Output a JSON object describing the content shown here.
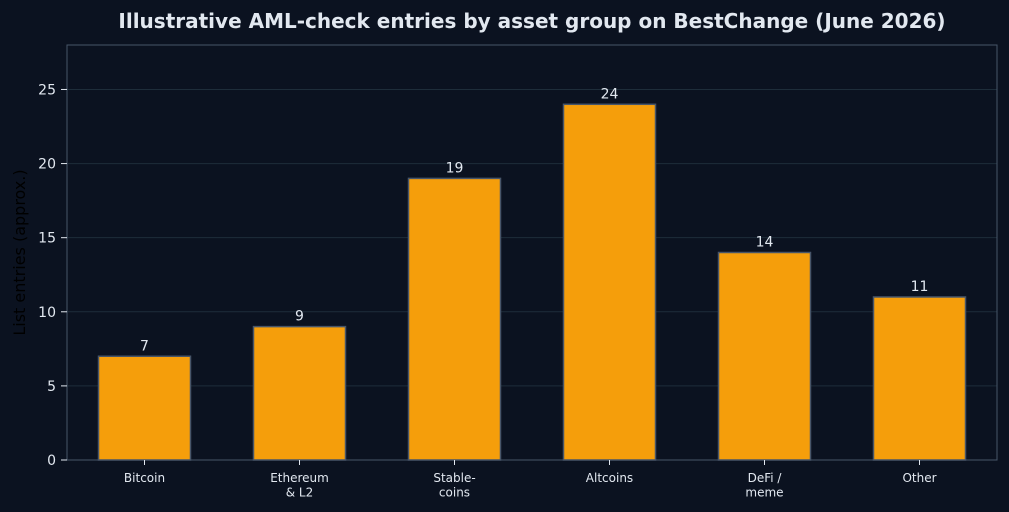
{
  "chart_data": {
    "type": "bar",
    "title": "Illustrative AML-check entries by asset group on BestChange (June 2026)",
    "xlabel": "",
    "ylabel": "List entries (approx.)",
    "categories": [
      [
        "Bitcoin"
      ],
      [
        "Ethereum",
        "& L2"
      ],
      [
        "Stable-",
        "coins"
      ],
      [
        "Altcoins"
      ],
      [
        "DeFi /",
        "meme"
      ],
      [
        "Other"
      ]
    ],
    "values": [
      7,
      9,
      19,
      24,
      14,
      11
    ],
    "data_labels": [
      "7",
      "9",
      "19",
      "24",
      "14",
      "11"
    ],
    "ylim": [
      0,
      28
    ],
    "yticks": [
      0,
      5,
      10,
      15,
      20,
      25
    ],
    "grid": true,
    "colors": {
      "background": "#0b1220",
      "bar": "#f59e0b",
      "bar_edge": "#475569",
      "grid": "#1e2d3a",
      "axis": "#475569",
      "text": "#e2e8f0",
      "ylabel": "#000000"
    }
  }
}
